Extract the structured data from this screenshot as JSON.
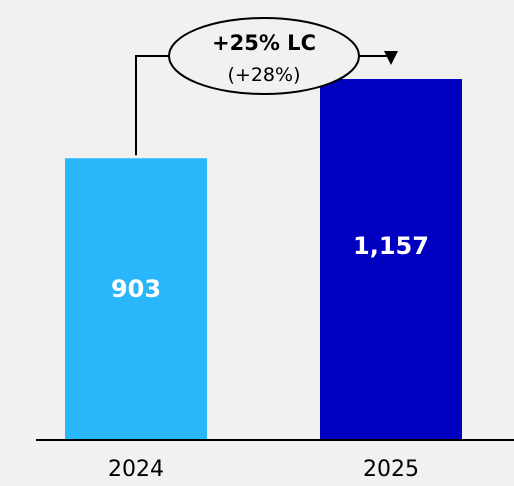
{
  "chart_data": {
    "type": "bar",
    "categories": [
      "2024",
      "2025"
    ],
    "values": [
      903,
      1157
    ],
    "value_labels": [
      "903",
      "1,157"
    ],
    "ylim": [
      0,
      1250
    ],
    "grid": false,
    "legend": "none",
    "colors": [
      "#29b6fb",
      "#0000c0"
    ],
    "annotation": {
      "main": "+25% LC",
      "sub": "(+28%)"
    }
  }
}
